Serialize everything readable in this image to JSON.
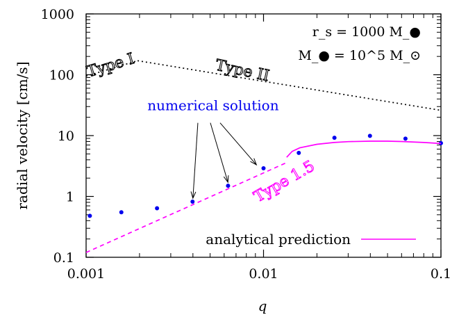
{
  "chart_data": {
    "type": "scatter",
    "xscale": "log",
    "yscale": "log",
    "xlim": [
      0.001,
      0.1
    ],
    "ylim": [
      0.1,
      1000
    ],
    "grid": false,
    "xlabel": "q",
    "ylabel": "radial velocity  [cm/s]",
    "x_ticks": [
      {
        "value": 0.001,
        "label": "0.001"
      },
      {
        "value": 0.01,
        "label": "0.01"
      },
      {
        "value": 0.1,
        "label": "0.1"
      }
    ],
    "y_ticks": [
      {
        "value": 0.1,
        "label": "0.1"
      },
      {
        "value": 1,
        "label": "1"
      },
      {
        "value": 10,
        "label": "10"
      },
      {
        "value": 100,
        "label": "100"
      },
      {
        "value": 1000,
        "label": "1000"
      }
    ],
    "params": [
      "r_s = 1000 M_●",
      "M_● = 10^5 M_⊙"
    ],
    "series": [
      {
        "name": "numerical solution",
        "style": "points",
        "color": "#0000ee",
        "points": [
          {
            "x": 0.00105,
            "y": 0.48
          },
          {
            "x": 0.00158,
            "y": 0.55
          },
          {
            "x": 0.00251,
            "y": 0.64
          },
          {
            "x": 0.00398,
            "y": 0.82
          },
          {
            "x": 0.00631,
            "y": 1.5
          },
          {
            "x": 0.01,
            "y": 2.9
          },
          {
            "x": 0.0158,
            "y": 5.2
          },
          {
            "x": 0.0251,
            "y": 9.2
          },
          {
            "x": 0.0398,
            "y": 9.9
          },
          {
            "x": 0.0631,
            "y": 8.9
          },
          {
            "x": 0.1,
            "y": 7.5
          }
        ]
      },
      {
        "name": "Type I",
        "style": "dotted",
        "color": "#000000",
        "points": [
          {
            "x": 0.001,
            "y": 95
          },
          {
            "x": 0.00195,
            "y": 170
          }
        ]
      },
      {
        "name": "Type II",
        "style": "dotted",
        "color": "#000000",
        "points": [
          {
            "x": 0.00195,
            "y": 170
          },
          {
            "x": 0.1,
            "y": 26
          }
        ]
      },
      {
        "name": "Type 1.5",
        "style": "dashed",
        "color": "#ff00ff",
        "points": [
          {
            "x": 0.001,
            "y": 0.12
          },
          {
            "x": 0.0135,
            "y": 3.6
          }
        ]
      },
      {
        "name": "analytical prediction",
        "style": "solid",
        "color": "#ff00ff",
        "points": [
          {
            "x": 0.0135,
            "y": 4.4
          },
          {
            "x": 0.0145,
            "y": 5.5
          },
          {
            "x": 0.016,
            "y": 6.3
          },
          {
            "x": 0.02,
            "y": 7.2
          },
          {
            "x": 0.025,
            "y": 7.7
          },
          {
            "x": 0.03,
            "y": 7.95
          },
          {
            "x": 0.04,
            "y": 8.1
          },
          {
            "x": 0.05,
            "y": 8.1
          },
          {
            "x": 0.06,
            "y": 8.0
          },
          {
            "x": 0.08,
            "y": 7.7
          },
          {
            "x": 0.1,
            "y": 7.4
          }
        ]
      }
    ],
    "curve_labels": [
      {
        "text": "Type I",
        "color": "#000000",
        "at_x": 0.0014,
        "at_y": 120,
        "angle": -17
      },
      {
        "text": "Type II",
        "color": "#000000",
        "at_x": 0.0075,
        "at_y": 98,
        "angle": 12
      },
      {
        "text": "Type 1.5",
        "color": "#ff00ff",
        "at_x": 0.0135,
        "at_y": 1.5,
        "angle": -30
      }
    ],
    "annotation": {
      "text": "numerical solution",
      "color": "#0000ee",
      "anchor": {
        "x": 0.0052,
        "y": 20
      },
      "arrow_targets": [
        {
          "x": 0.004,
          "y": 0.82
        },
        {
          "x": 0.0063,
          "y": 1.5
        },
        {
          "x": 0.0098,
          "y": 2.9
        }
      ]
    },
    "legend": {
      "position": "bottom-right",
      "entries": [
        {
          "label": "analytical prediction",
          "color": "#ff00ff",
          "style": "solid"
        }
      ]
    }
  }
}
